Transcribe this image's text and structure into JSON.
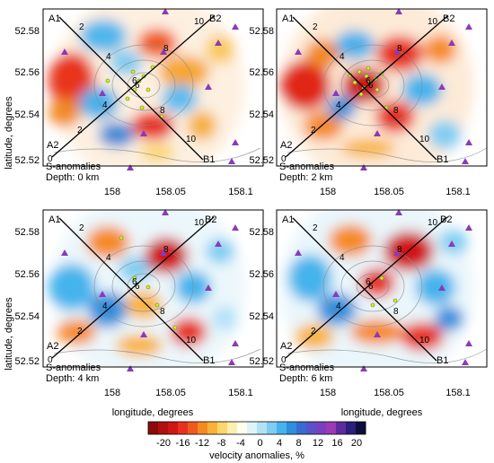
{
  "panels": [
    {
      "id": "p1",
      "line1": "S-anomalies",
      "line2": "Depth: 0 km"
    },
    {
      "id": "p2",
      "line1": "S-anomalies",
      "line2": "Depth: 2 km"
    },
    {
      "id": "p3",
      "line1": "S-anomalies",
      "line2": "Depth: 4 km"
    },
    {
      "id": "p4",
      "line1": "S-anomalies",
      "line2": "Depth: 6 km"
    }
  ],
  "profiles": {
    "a1": "A1",
    "a2": "A2",
    "b1": "B1",
    "b2": "B2",
    "ticks": [
      "0",
      "2",
      "4",
      "6",
      "8",
      "10"
    ]
  },
  "axes": {
    "xlabel": "longitude, degrees",
    "ylabel": "latitude, degrees",
    "x_ticks": [
      "158",
      "158.05",
      "158.1"
    ],
    "y_ticks": [
      "52.58",
      "52.56",
      "52.54",
      "52.52"
    ]
  },
  "colorbar": {
    "title": "velocity anomalies, %",
    "ticks": [
      "-20",
      "-16",
      "-12",
      "-8",
      "-4",
      "0",
      "4",
      "8",
      "12",
      "16",
      "20"
    ],
    "colors": [
      "#8c0a0a",
      "#b01010",
      "#d01515",
      "#e83020",
      "#f05a1e",
      "#f68a22",
      "#f9b236",
      "#fbd66a",
      "#fcefb0",
      "#fffff0",
      "#dff3fb",
      "#b2e2f7",
      "#7fcdf2",
      "#45b4ec",
      "#2e8fdd",
      "#3a6ad0",
      "#5a52c8",
      "#7a3fc0",
      "#9c3ab6",
      "#5f2aa0",
      "#2a1f7a",
      "#0d0d3c"
    ]
  },
  "colors": {
    "station": "#8a3ab8",
    "event_fill": "#f5e21a",
    "event_stroke": "#2a9a2a",
    "contour": "#8a8a8a",
    "profile": "#000000"
  },
  "icons": [
    "station-triangle-icon",
    "event-circle-icon"
  ]
}
